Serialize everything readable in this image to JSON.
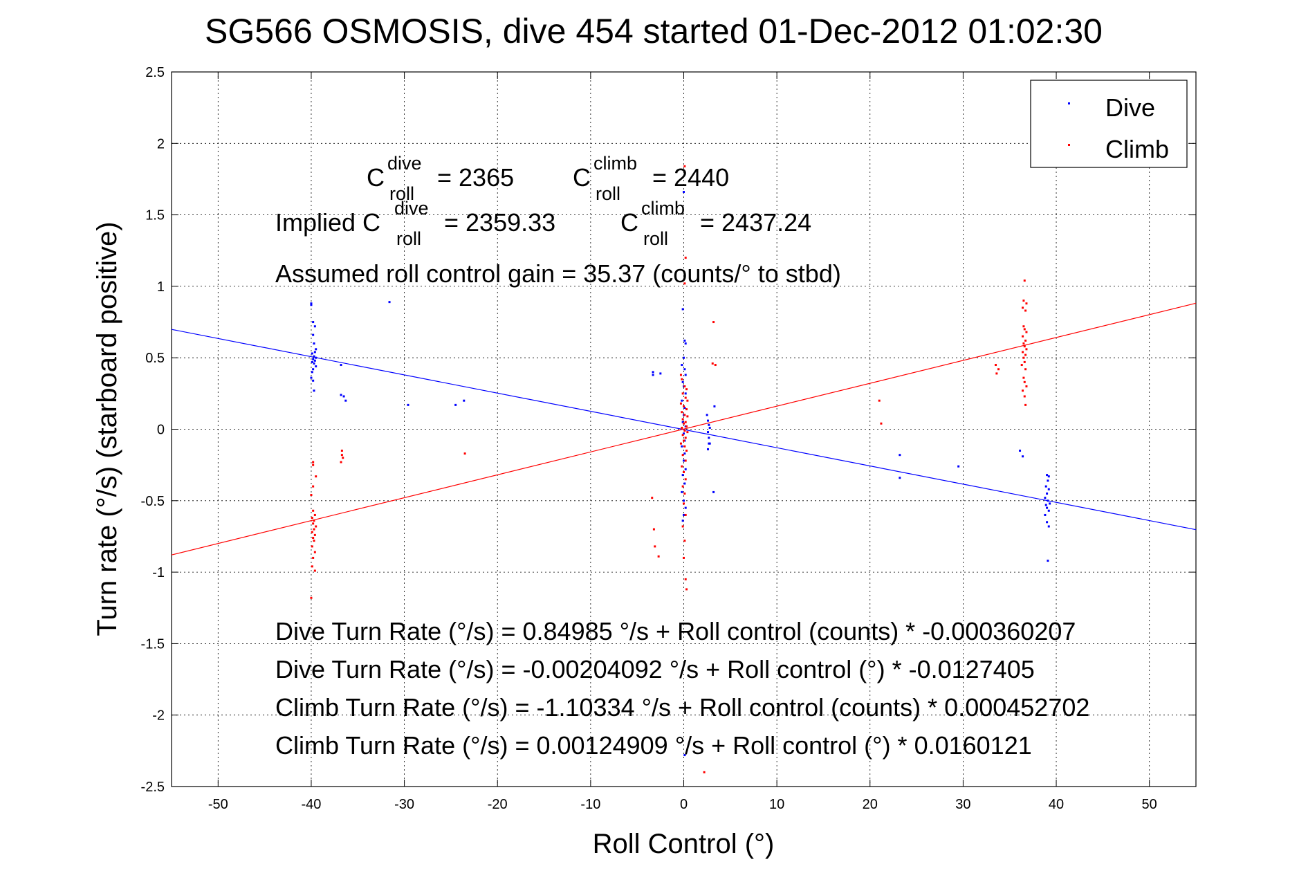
{
  "chart_data": {
    "type": "scatter",
    "title": "SG566 OSMOSIS, dive 454 started 01-Dec-2012 01:02:30",
    "xlabel": "Roll Control (°)",
    "ylabel": "Turn rate (°/s)  (starboard positive)",
    "xlim": [
      -55,
      55
    ],
    "ylim": [
      -2.5,
      2.5
    ],
    "grid": true,
    "legend_position": "top-right",
    "x_ticks": [
      "-50",
      "-40",
      "-30",
      "-20",
      "-10",
      "0",
      "10",
      "20",
      "30",
      "40",
      "50"
    ],
    "y_ticks": [
      "2.5",
      "2",
      "1.5",
      "1",
      "0.5",
      "0",
      "-0.5",
      "-1",
      "-1.5",
      "-2",
      "-2.5"
    ],
    "x_tick_values": [
      -50,
      -40,
      -30,
      -20,
      -10,
      0,
      10,
      20,
      30,
      40,
      50
    ],
    "y_tick_values": [
      2.5,
      2,
      1.5,
      1,
      0.5,
      0,
      -0.5,
      -1,
      -1.5,
      -2,
      -2.5
    ],
    "colors": {
      "dive": "#0000ff",
      "climb": "#ff0000"
    },
    "series": [
      {
        "name": "Dive",
        "color": "#0000ff",
        "points": [
          [
            -40,
            0.88
          ],
          [
            -40,
            0.87
          ],
          [
            -39.8,
            0.75
          ],
          [
            -39.6,
            0.72
          ],
          [
            -39.8,
            0.66
          ],
          [
            -39.7,
            0.6
          ],
          [
            -39.5,
            0.56
          ],
          [
            -39.6,
            0.54
          ],
          [
            -39.9,
            0.53
          ],
          [
            -39.7,
            0.51
          ],
          [
            -39.5,
            0.5
          ],
          [
            -39.8,
            0.49
          ],
          [
            -39.6,
            0.48
          ],
          [
            -39.9,
            0.47
          ],
          [
            -39.7,
            0.46
          ],
          [
            -39.5,
            0.44
          ],
          [
            -39.8,
            0.42
          ],
          [
            -39.9,
            0.4
          ],
          [
            -40,
            0.36
          ],
          [
            -39.8,
            0.34
          ],
          [
            -39.7,
            0.27
          ],
          [
            -36.8,
            0.45
          ],
          [
            -36.8,
            0.24
          ],
          [
            -36.5,
            0.23
          ],
          [
            -36.3,
            0.2
          ],
          [
            -31.6,
            0.89
          ],
          [
            -29.6,
            0.17
          ],
          [
            -24.5,
            0.17
          ],
          [
            -23.6,
            0.2
          ],
          [
            -3.3,
            0.4
          ],
          [
            -3.3,
            0.38
          ],
          [
            -2.5,
            0.39
          ],
          [
            -0.1,
            0.84
          ],
          [
            0.1,
            0.62
          ],
          [
            0.2,
            0.6
          ],
          [
            0,
            0.5
          ],
          [
            -0.2,
            0.45
          ],
          [
            0.1,
            0.42
          ],
          [
            0.2,
            0.38
          ],
          [
            -0.1,
            0.33
          ],
          [
            0,
            0.3
          ],
          [
            0.2,
            0.25
          ],
          [
            -0.2,
            0.2
          ],
          [
            0.1,
            0.15
          ],
          [
            0,
            0.1
          ],
          [
            -0.1,
            0.05
          ],
          [
            0.2,
            0.02
          ],
          [
            0,
            -0.03
          ],
          [
            0.1,
            -0.08
          ],
          [
            -0.2,
            -0.12
          ],
          [
            0.1,
            -0.17
          ],
          [
            0,
            -0.22
          ],
          [
            0.2,
            -0.28
          ],
          [
            -0.1,
            -0.32
          ],
          [
            0.1,
            -0.38
          ],
          [
            -0.2,
            -0.44
          ],
          [
            0,
            -0.5
          ],
          [
            0.2,
            -0.55
          ],
          [
            0,
            -0.6
          ],
          [
            -0.1,
            -0.64
          ],
          [
            0,
            1.66
          ],
          [
            0.1,
            -2.28
          ],
          [
            2.5,
            0.1
          ],
          [
            2.6,
            0.06
          ],
          [
            2.7,
            0.03
          ],
          [
            2.8,
            0.01
          ],
          [
            2.6,
            -0.02
          ],
          [
            2.7,
            -0.06
          ],
          [
            2.8,
            -0.1
          ],
          [
            2.6,
            -0.14
          ],
          [
            2.7,
            -0.1
          ],
          [
            3.3,
            0.16
          ],
          [
            3.2,
            -0.44
          ],
          [
            23.2,
            -0.18
          ],
          [
            23.2,
            -0.34
          ],
          [
            29.5,
            -0.26
          ],
          [
            36.1,
            -0.15
          ],
          [
            36.4,
            -0.19
          ],
          [
            39,
            -0.32
          ],
          [
            39.2,
            -0.33
          ],
          [
            39.1,
            -0.36
          ],
          [
            38.9,
            -0.4
          ],
          [
            39.2,
            -0.42
          ],
          [
            39,
            -0.45
          ],
          [
            38.8,
            -0.48
          ],
          [
            39.1,
            -0.5
          ],
          [
            39.3,
            -0.52
          ],
          [
            38.9,
            -0.53
          ],
          [
            39,
            -0.55
          ],
          [
            39.2,
            -0.57
          ],
          [
            38.8,
            -0.6
          ],
          [
            39,
            -0.65
          ],
          [
            39.2,
            -0.68
          ],
          [
            39.1,
            -0.92
          ]
        ],
        "fit_line": {
          "intercept": -0.00204092,
          "slope": -0.0127405
        }
      },
      {
        "name": "Climb",
        "color": "#ff0000",
        "points": [
          [
            -39.8,
            -0.23
          ],
          [
            -39.8,
            -0.25
          ],
          [
            -39.5,
            -0.33
          ],
          [
            -39.8,
            -0.4
          ],
          [
            -40,
            -0.46
          ],
          [
            -39.8,
            -0.57
          ],
          [
            -39.6,
            -0.6
          ],
          [
            -39.9,
            -0.62
          ],
          [
            -39.7,
            -0.64
          ],
          [
            -39.8,
            -0.66
          ],
          [
            -39.5,
            -0.68
          ],
          [
            -39.7,
            -0.7
          ],
          [
            -39.9,
            -0.72
          ],
          [
            -39.6,
            -0.74
          ],
          [
            -39.8,
            -0.76
          ],
          [
            -39.7,
            -0.78
          ],
          [
            -39.9,
            -0.82
          ],
          [
            -39.6,
            -0.86
          ],
          [
            -39.8,
            -0.9
          ],
          [
            -39.9,
            -0.96
          ],
          [
            -39.6,
            -0.99
          ],
          [
            -40,
            -1.18
          ],
          [
            -36.7,
            -0.15
          ],
          [
            -36.7,
            -0.18
          ],
          [
            -36.6,
            -0.2
          ],
          [
            -36.8,
            -0.23
          ],
          [
            -23.5,
            -0.17
          ],
          [
            -3.4,
            -0.48
          ],
          [
            -3.2,
            -0.7
          ],
          [
            -3.1,
            -0.82
          ],
          [
            -2.7,
            -0.89
          ],
          [
            -0.3,
            0.38
          ],
          [
            -0.2,
            0.35
          ],
          [
            0.1,
            0.3
          ],
          [
            0.3,
            0.28
          ],
          [
            -0.1,
            0.25
          ],
          [
            0.2,
            0.22
          ],
          [
            0.4,
            0.2
          ],
          [
            -0.3,
            0.18
          ],
          [
            0,
            0.16
          ],
          [
            0.3,
            0.14
          ],
          [
            -0.2,
            0.12
          ],
          [
            0.1,
            0.1
          ],
          [
            0.4,
            0.09
          ],
          [
            -0.1,
            0.07
          ],
          [
            0.2,
            0.05
          ],
          [
            0,
            0.04
          ],
          [
            0.3,
            0.02
          ],
          [
            -0.2,
            0.01
          ],
          [
            0.1,
            -0.01
          ],
          [
            0.4,
            -0.02
          ],
          [
            -0.1,
            -0.04
          ],
          [
            0.2,
            -0.06
          ],
          [
            0,
            -0.08
          ],
          [
            -0.3,
            -0.1
          ],
          [
            0.1,
            -0.12
          ],
          [
            0.3,
            -0.15
          ],
          [
            -0.1,
            -0.18
          ],
          [
            0.2,
            -0.22
          ],
          [
            -0.2,
            -0.26
          ],
          [
            0,
            -0.3
          ],
          [
            0.2,
            -0.35
          ],
          [
            -0.1,
            -0.4
          ],
          [
            0.1,
            -0.45
          ],
          [
            0,
            -0.52
          ],
          [
            0.2,
            -0.6
          ],
          [
            -0.1,
            -0.68
          ],
          [
            0.1,
            -0.78
          ],
          [
            0,
            -0.9
          ],
          [
            0.2,
            -1.05
          ],
          [
            0.3,
            -1.12
          ],
          [
            0.1,
            1.84
          ],
          [
            0.2,
            1.2
          ],
          [
            0.1,
            1.02
          ],
          [
            3.2,
            0.75
          ],
          [
            3.1,
            0.46
          ],
          [
            3.4,
            0.45
          ],
          [
            2.2,
            -2.4
          ],
          [
            21,
            0.2
          ],
          [
            21.2,
            0.04
          ],
          [
            33.5,
            0.45
          ],
          [
            33.8,
            0.42
          ],
          [
            33.6,
            0.39
          ],
          [
            36.6,
            1.04
          ],
          [
            36.5,
            0.9
          ],
          [
            36.8,
            0.88
          ],
          [
            36.4,
            0.85
          ],
          [
            36.7,
            0.83
          ],
          [
            36.5,
            0.72
          ],
          [
            36.6,
            0.7
          ],
          [
            36.8,
            0.68
          ],
          [
            36.4,
            0.65
          ],
          [
            36.7,
            0.62
          ],
          [
            36.5,
            0.6
          ],
          [
            36.6,
            0.58
          ],
          [
            36.8,
            0.56
          ],
          [
            36.4,
            0.54
          ],
          [
            36.7,
            0.52
          ],
          [
            36.5,
            0.5
          ],
          [
            36.6,
            0.47
          ],
          [
            36.3,
            0.45
          ],
          [
            36.7,
            0.42
          ],
          [
            36.5,
            0.36
          ],
          [
            36.6,
            0.33
          ],
          [
            36.8,
            0.3
          ],
          [
            36.4,
            0.27
          ],
          [
            36.6,
            0.23
          ],
          [
            36.7,
            0.17
          ]
        ],
        "fit_line": {
          "intercept": 0.00124909,
          "slope": 0.0160121
        }
      }
    ],
    "annotations": {
      "c_dive": {
        "base": "C",
        "sup": "dive",
        "sub": "roll",
        "value": "= 2365"
      },
      "c_climb": {
        "base": "C",
        "sup": "climb",
        "sub": "roll",
        "value": "= 2440"
      },
      "implied_prefix": "Implied C",
      "implied_dive": {
        "sup": "dive",
        "sub": "roll",
        "value": "= 2359.33"
      },
      "implied_climb": {
        "base": "C",
        "sup": "climb",
        "sub": "roll",
        "value": "= 2437.24"
      },
      "gain": "Assumed roll control gain = 35.37 (counts/° to stbd)",
      "fit_lines": [
        "Dive Turn Rate (°/s) = 0.84985 °/s + Roll control (counts) * -0.000360207",
        "Dive Turn Rate (°/s) = -0.00204092 °/s + Roll control (°) * -0.0127405",
        "Climb Turn Rate (°/s) = -1.10334 °/s + Roll control (counts) * 0.000452702",
        "Climb Turn Rate (°/s) = 0.00124909 °/s + Roll control (°) * 0.0160121"
      ]
    }
  }
}
